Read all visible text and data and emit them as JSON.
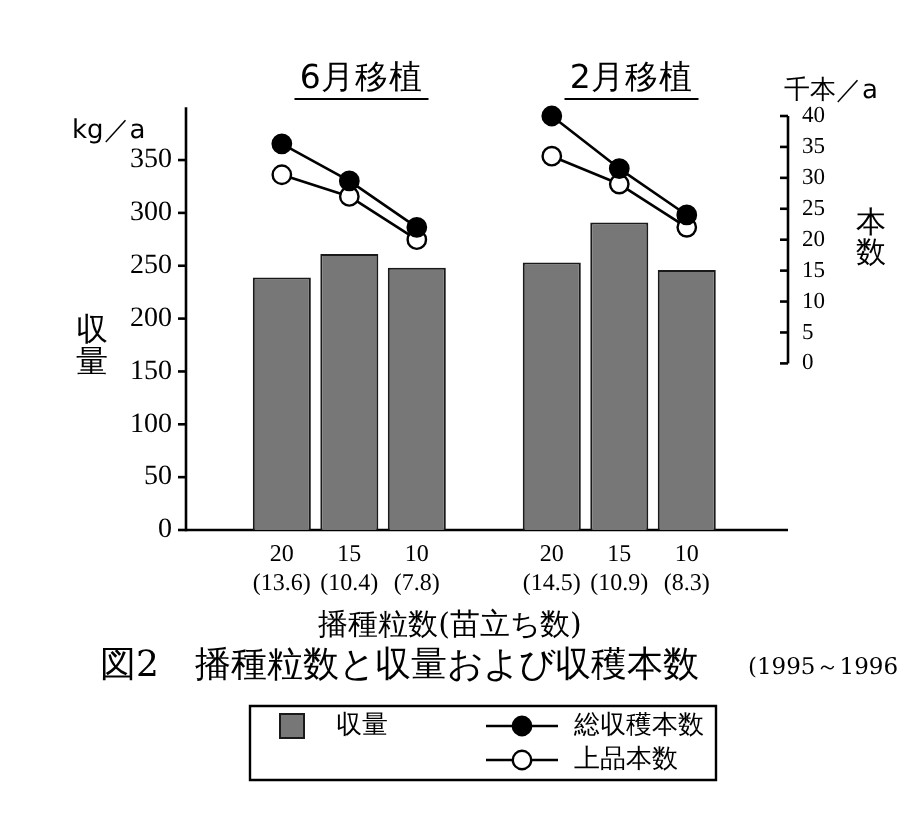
{
  "chart_data": {
    "type": "bar",
    "title": "図2　播種粒数と収量および収穫本数",
    "subtitle": "(1995～1996",
    "xlabel": "播種粒数(苗立ち数)",
    "ylabel": "収量",
    "y2label": "本数",
    "annotations": [
      "6月移植",
      "2月移植",
      "kg／a",
      "千本／a"
    ],
    "categories": [
      "20\n(13.6)",
      "15\n(10.4)",
      "10\n(7.8)",
      null,
      "20\n(14.5)",
      "15\n(10.9)",
      "10\n(8.3)"
    ],
    "series": [
      {
        "name": "収量",
        "color": "#777777",
        "values": [
          239,
          261,
          248,
          null,
          253,
          291,
          246
        ]
      },
      {
        "name": "総収穫本数",
        "type": "line",
        "axis": "y2",
        "color": "#000000",
        "values": [
          35.5,
          29.5,
          22,
          null,
          40,
          31.5,
          24
        ]
      },
      {
        "name": "上品本数",
        "type": "line",
        "axis": "y2",
        "color": "#000000",
        "values": [
          30.5,
          27,
          20,
          null,
          33.5,
          29,
          22
        ]
      }
    ],
    "ylim": [
      0,
      400
    ],
    "yticks": [
      0,
      50,
      100,
      150,
      200,
      250,
      300,
      350
    ],
    "y2lim": [
      0,
      40
    ],
    "y2ticks": [
      0,
      5,
      10,
      15,
      20,
      25,
      30,
      35,
      40
    ],
    "legend": "bottom",
    "marker": "circle",
    "line_style": "solid"
  }
}
